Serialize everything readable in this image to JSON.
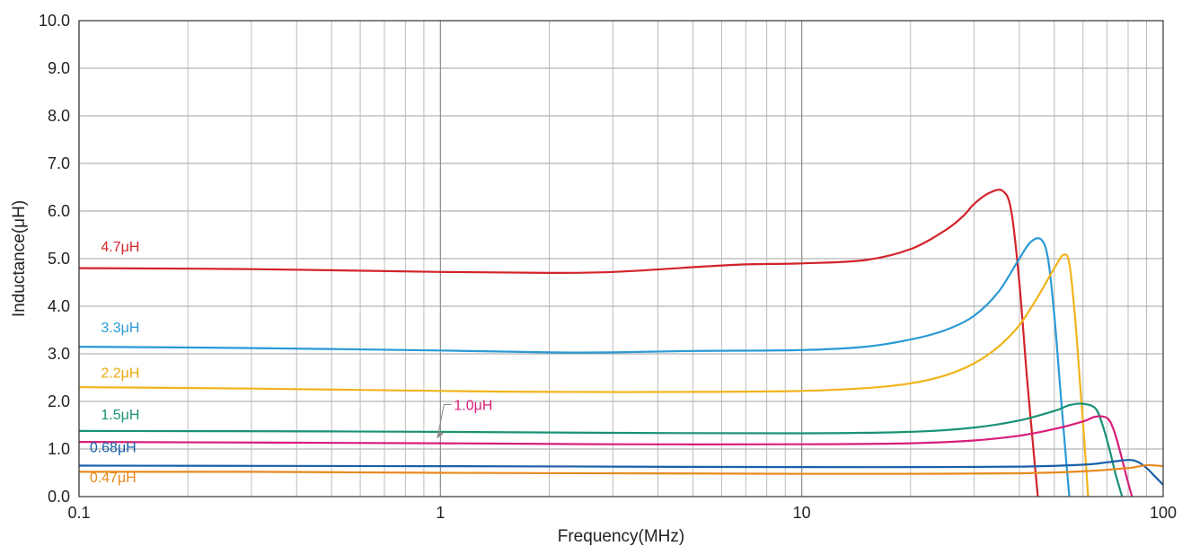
{
  "chart_data": {
    "type": "line",
    "xlabel": "Frequency(MHz)",
    "ylabel": "Inductance(μH)",
    "x_scale": "log",
    "xlim": [
      0.1,
      100
    ],
    "ylim": [
      0,
      10
    ],
    "grid": true,
    "x_ticks": [
      0.1,
      1,
      10,
      100
    ],
    "x_tick_labels": [
      "0.1",
      "1",
      "10",
      "100"
    ],
    "y_ticks": [
      0,
      1,
      2,
      3,
      4,
      5,
      6,
      7,
      8,
      9,
      10
    ],
    "y_tick_labels": [
      "0.0",
      "1.0",
      "2.0",
      "3.0",
      "4.0",
      "5.0",
      "6.0",
      "7.0",
      "8.0",
      "9.0",
      "10.0"
    ],
    "series": [
      {
        "name": "4.7μH",
        "color": "#d2232a",
        "x": [
          0.1,
          0.3,
          1,
          2,
          3,
          5,
          7,
          10,
          15,
          20,
          25,
          28,
          30,
          33,
          36,
          38,
          40,
          42,
          44,
          45
        ],
        "y": [
          4.8,
          4.78,
          4.72,
          4.7,
          4.72,
          4.82,
          4.88,
          4.9,
          4.97,
          5.2,
          5.6,
          5.9,
          6.15,
          6.38,
          6.42,
          6.0,
          4.5,
          2.5,
          0.8,
          0.0
        ]
      },
      {
        "name": "3.3μH",
        "color": "#2a9ad6",
        "x": [
          0.1,
          0.3,
          1,
          2,
          3,
          5,
          10,
          15,
          20,
          25,
          30,
          35,
          40,
          43,
          46,
          48,
          50,
          52,
          54,
          55
        ],
        "y": [
          3.15,
          3.12,
          3.07,
          3.03,
          3.03,
          3.06,
          3.08,
          3.15,
          3.3,
          3.5,
          3.8,
          4.3,
          5.0,
          5.35,
          5.4,
          5.0,
          3.8,
          2.2,
          0.7,
          0.0
        ]
      },
      {
        "name": "2.2μH",
        "color": "#f0b41c",
        "x": [
          0.1,
          0.3,
          1,
          2,
          5,
          10,
          15,
          20,
          25,
          30,
          35,
          40,
          45,
          50,
          53,
          55,
          57,
          59,
          61,
          62
        ],
        "y": [
          2.3,
          2.27,
          2.22,
          2.2,
          2.2,
          2.22,
          2.28,
          2.38,
          2.55,
          2.8,
          3.15,
          3.6,
          4.2,
          4.8,
          5.08,
          4.9,
          3.8,
          2.3,
          0.8,
          0.0
        ]
      },
      {
        "name": "1.5μH",
        "color": "#1a9275",
        "x": [
          0.1,
          0.5,
          1,
          3,
          10,
          20,
          30,
          40,
          50,
          55,
          60,
          65,
          68,
          71,
          74,
          77
        ],
        "y": [
          1.38,
          1.37,
          1.36,
          1.34,
          1.33,
          1.36,
          1.45,
          1.6,
          1.8,
          1.92,
          1.95,
          1.85,
          1.5,
          1.0,
          0.45,
          0.0
        ]
      },
      {
        "name": "1.0μH",
        "color": "#d81e7a",
        "x": [
          0.1,
          1,
          3,
          10,
          20,
          30,
          40,
          50,
          60,
          65,
          70,
          73,
          76,
          79,
          82
        ],
        "y": [
          1.15,
          1.12,
          1.1,
          1.1,
          1.12,
          1.18,
          1.28,
          1.42,
          1.58,
          1.68,
          1.65,
          1.4,
          0.95,
          0.45,
          0.0
        ]
      },
      {
        "name": "0.68μH",
        "color": "#1a5fa8",
        "x": [
          0.1,
          1,
          3,
          10,
          20,
          40,
          60,
          70,
          80,
          85,
          90,
          95,
          100
        ],
        "y": [
          0.65,
          0.64,
          0.63,
          0.62,
          0.62,
          0.63,
          0.67,
          0.72,
          0.77,
          0.73,
          0.6,
          0.42,
          0.25
        ]
      },
      {
        "name": "0.47μH",
        "color": "#e8891f",
        "x": [
          0.1,
          0.3,
          1,
          3,
          10,
          20,
          40,
          60,
          80,
          90,
          100
        ],
        "y": [
          0.52,
          0.52,
          0.5,
          0.49,
          0.48,
          0.48,
          0.49,
          0.53,
          0.6,
          0.66,
          0.64
        ]
      }
    ],
    "series_labels": [
      {
        "text": "4.7μH",
        "color": "#d2232a",
        "x": 0.115,
        "y": 5.15
      },
      {
        "text": "3.3μH",
        "color": "#2a9ad6",
        "x": 0.115,
        "y": 3.45
      },
      {
        "text": "2.2μH",
        "color": "#e8a80c",
        "x": 0.115,
        "y": 2.5
      },
      {
        "text": "1.5μH",
        "color": "#1a9275",
        "x": 0.115,
        "y": 1.62
      },
      {
        "text": "1.0μH",
        "color": "#d81e7a",
        "x": 1.09,
        "y": 1.82
      },
      {
        "text": "0.68μH",
        "color": "#1a5fa8",
        "x": 0.107,
        "y": 0.93
      },
      {
        "text": "0.47μH",
        "color": "#e8891f",
        "x": 0.107,
        "y": 0.3
      }
    ]
  }
}
